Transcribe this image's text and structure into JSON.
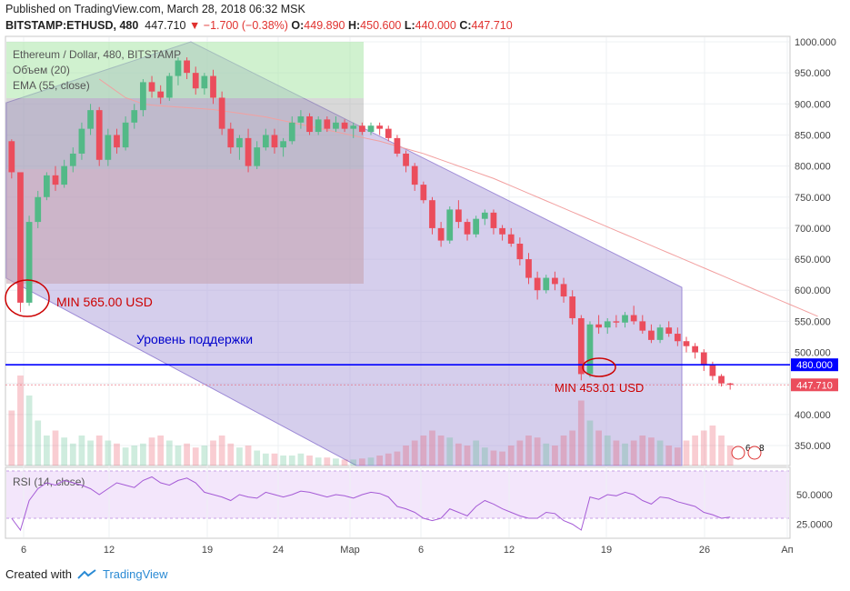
{
  "header": {
    "published": "Published on TradingView.com, March 28, 2018 06:32 MSK",
    "symbol": "BITSTAMP:ETHUSD, 480",
    "last": "447.710",
    "change": "▼ −1.700 (−0.38%)",
    "o_label": "O:",
    "o": "449.890",
    "h_label": "H:",
    "h": "450.600",
    "l_label": "L:",
    "l": "440.000",
    "c_label": "C:",
    "c": "447.710"
  },
  "legend": {
    "series": "Ethereum / Dollar, 480, BITSTAMP",
    "volume": "Объем (20)",
    "ema": "EMA (55, close)",
    "rsi": "RSI (14, close)"
  },
  "annotations": {
    "min1": "MIN 565.00 USD",
    "support": "Уровень поддержки",
    "min2": "MIN 453.01 USD"
  },
  "events": {
    "a": "6",
    "b": "8"
  },
  "footer": {
    "created": "Created with",
    "brand": "TradingView"
  },
  "colors": {
    "up": "#53b987",
    "down": "#eb4d5c",
    "support": "#0000ff",
    "annotation": "#cc0000",
    "channel": "#9c89d6"
  },
  "chart_data": {
    "type": "candlestick",
    "yaxis": {
      "ticks": [
        "1000.000",
        "950.000",
        "900.000",
        "850.000",
        "800.000",
        "750.000",
        "700.000",
        "650.000",
        "600.000",
        "550.000",
        "500.000",
        "450.000",
        "400.000",
        "350.000"
      ],
      "tick_values": [
        1000,
        950,
        900,
        850,
        800,
        750,
        700,
        650,
        600,
        550,
        500,
        450,
        400,
        350
      ]
    },
    "xaxis": {
      "ticks": [
        "6",
        "12",
        "19",
        "24",
        "Мар",
        "6",
        "12",
        "19",
        "26",
        "Ап"
      ]
    },
    "price_labels": {
      "support": "480.000",
      "last": "447.710"
    },
    "support_level": 480,
    "last_price": 447.71,
    "rsi": {
      "ticks": [
        "50.0000",
        "25.0000"
      ],
      "tick_values": [
        50,
        25
      ],
      "band": [
        30,
        70
      ]
    },
    "candles": [
      [
        840,
        843,
        780,
        790
      ],
      [
        790,
        790,
        565,
        580
      ],
      [
        580,
        720,
        575,
        710
      ],
      [
        710,
        760,
        700,
        750
      ],
      [
        750,
        790,
        745,
        785
      ],
      [
        785,
        800,
        760,
        770
      ],
      [
        770,
        810,
        765,
        800
      ],
      [
        800,
        830,
        790,
        820
      ],
      [
        820,
        870,
        810,
        860
      ],
      [
        860,
        900,
        850,
        890
      ],
      [
        890,
        895,
        800,
        810
      ],
      [
        810,
        860,
        800,
        850
      ],
      [
        850,
        860,
        820,
        830
      ],
      [
        830,
        880,
        825,
        870
      ],
      [
        870,
        900,
        860,
        890
      ],
      [
        890,
        940,
        880,
        935
      ],
      [
        935,
        945,
        910,
        920
      ],
      [
        920,
        930,
        900,
        910
      ],
      [
        910,
        950,
        905,
        945
      ],
      [
        945,
        975,
        930,
        970
      ],
      [
        970,
        975,
        940,
        950
      ],
      [
        950,
        960,
        915,
        925
      ],
      [
        925,
        950,
        915,
        945
      ],
      [
        945,
        955,
        900,
        910
      ],
      [
        910,
        920,
        850,
        860
      ],
      [
        860,
        870,
        820,
        830
      ],
      [
        830,
        850,
        810,
        845
      ],
      [
        845,
        860,
        790,
        800
      ],
      [
        800,
        840,
        795,
        830
      ],
      [
        830,
        860,
        825,
        850
      ],
      [
        850,
        860,
        820,
        830
      ],
      [
        830,
        845,
        815,
        840
      ],
      [
        840,
        880,
        835,
        870
      ],
      [
        870,
        890,
        860,
        880
      ],
      [
        880,
        885,
        850,
        855
      ],
      [
        855,
        880,
        850,
        875
      ],
      [
        875,
        880,
        855,
        860
      ],
      [
        860,
        880,
        855,
        870
      ],
      [
        870,
        875,
        855,
        860
      ],
      [
        860,
        870,
        845,
        865
      ],
      [
        865,
        870,
        850,
        855
      ],
      [
        855,
        870,
        850,
        865
      ],
      [
        865,
        870,
        850,
        860
      ],
      [
        860,
        865,
        840,
        845
      ],
      [
        845,
        850,
        815,
        820
      ],
      [
        820,
        825,
        790,
        800
      ],
      [
        800,
        805,
        760,
        770
      ],
      [
        770,
        775,
        740,
        745
      ],
      [
        745,
        750,
        690,
        700
      ],
      [
        700,
        710,
        670,
        680
      ],
      [
        680,
        735,
        675,
        730
      ],
      [
        730,
        745,
        700,
        710
      ],
      [
        710,
        715,
        680,
        690
      ],
      [
        690,
        720,
        685,
        715
      ],
      [
        715,
        730,
        705,
        725
      ],
      [
        725,
        730,
        690,
        700
      ],
      [
        700,
        705,
        680,
        690
      ],
      [
        690,
        700,
        670,
        675
      ],
      [
        675,
        685,
        640,
        650
      ],
      [
        650,
        660,
        610,
        620
      ],
      [
        620,
        630,
        585,
        600
      ],
      [
        600,
        625,
        595,
        620
      ],
      [
        620,
        630,
        600,
        610
      ],
      [
        610,
        620,
        580,
        590
      ],
      [
        590,
        600,
        545,
        555
      ],
      [
        555,
        560,
        455,
        465
      ],
      [
        465,
        550,
        460,
        545
      ],
      [
        545,
        560,
        530,
        540
      ],
      [
        540,
        555,
        530,
        550
      ],
      [
        550,
        560,
        540,
        548
      ],
      [
        548,
        565,
        540,
        560
      ],
      [
        560,
        575,
        545,
        550
      ],
      [
        550,
        560,
        530,
        535
      ],
      [
        535,
        545,
        515,
        520
      ],
      [
        520,
        545,
        515,
        540
      ],
      [
        540,
        550,
        525,
        530
      ],
      [
        530,
        540,
        510,
        518
      ],
      [
        518,
        525,
        500,
        510
      ],
      [
        510,
        515,
        490,
        500
      ],
      [
        500,
        505,
        470,
        480
      ],
      [
        480,
        485,
        455,
        462
      ],
      [
        462,
        465,
        445,
        450
      ],
      [
        450,
        451,
        440,
        447.71
      ]
    ],
    "volumes": [
      0.55,
      0.9,
      0.7,
      0.45,
      0.3,
      0.35,
      0.28,
      0.22,
      0.3,
      0.25,
      0.3,
      0.25,
      0.22,
      0.18,
      0.2,
      0.22,
      0.28,
      0.3,
      0.25,
      0.2,
      0.22,
      0.18,
      0.2,
      0.25,
      0.3,
      0.22,
      0.18,
      0.2,
      0.15,
      0.12,
      0.12,
      0.1,
      0.1,
      0.12,
      0.1,
      0.08,
      0.08,
      0.07,
      0.06,
      0.06,
      0.07,
      0.08,
      0.1,
      0.12,
      0.14,
      0.2,
      0.25,
      0.3,
      0.35,
      0.3,
      0.28,
      0.22,
      0.2,
      0.25,
      0.18,
      0.15,
      0.14,
      0.2,
      0.25,
      0.3,
      0.28,
      0.22,
      0.2,
      0.3,
      0.35,
      0.65,
      0.45,
      0.35,
      0.3,
      0.25,
      0.22,
      0.25,
      0.3,
      0.28,
      0.25,
      0.2,
      0.18,
      0.25,
      0.3,
      0.35,
      0.4,
      0.3,
      0.2
    ],
    "rsi_values": [
      30,
      20,
      45,
      55,
      60,
      58,
      62,
      60,
      58,
      55,
      50,
      55,
      60,
      58,
      56,
      62,
      65,
      60,
      58,
      62,
      64,
      60,
      52,
      50,
      48,
      45,
      50,
      48,
      47,
      52,
      50,
      48,
      50,
      53,
      52,
      50,
      48,
      50,
      49,
      47,
      50,
      52,
      51,
      48,
      40,
      38,
      35,
      30,
      28,
      30,
      38,
      35,
      32,
      40,
      45,
      42,
      38,
      35,
      32,
      30,
      30,
      35,
      34,
      28,
      25,
      20,
      48,
      46,
      50,
      49,
      52,
      50,
      45,
      42,
      48,
      47,
      44,
      42,
      40,
      35,
      33,
      30,
      31
    ],
    "ema_values": [
      940,
      930,
      920,
      910,
      905,
      900,
      898,
      897,
      896,
      895,
      894,
      893,
      892,
      891,
      889,
      887,
      885,
      883,
      881,
      879,
      876,
      873,
      870,
      867,
      864,
      861,
      858,
      855,
      852,
      849,
      846,
      843,
      840,
      836,
      832,
      828,
      824,
      820,
      815,
      810,
      805,
      800,
      795,
      790,
      785,
      780,
      774,
      768,
      762,
      756,
      750,
      744,
      738,
      732,
      726,
      720,
      714,
      708,
      702,
      696,
      690,
      684,
      678,
      672,
      666,
      660,
      654,
      648,
      642,
      636,
      630,
      624,
      618,
      612,
      606,
      600,
      594,
      588,
      582,
      576,
      570,
      564,
      558
    ]
  }
}
